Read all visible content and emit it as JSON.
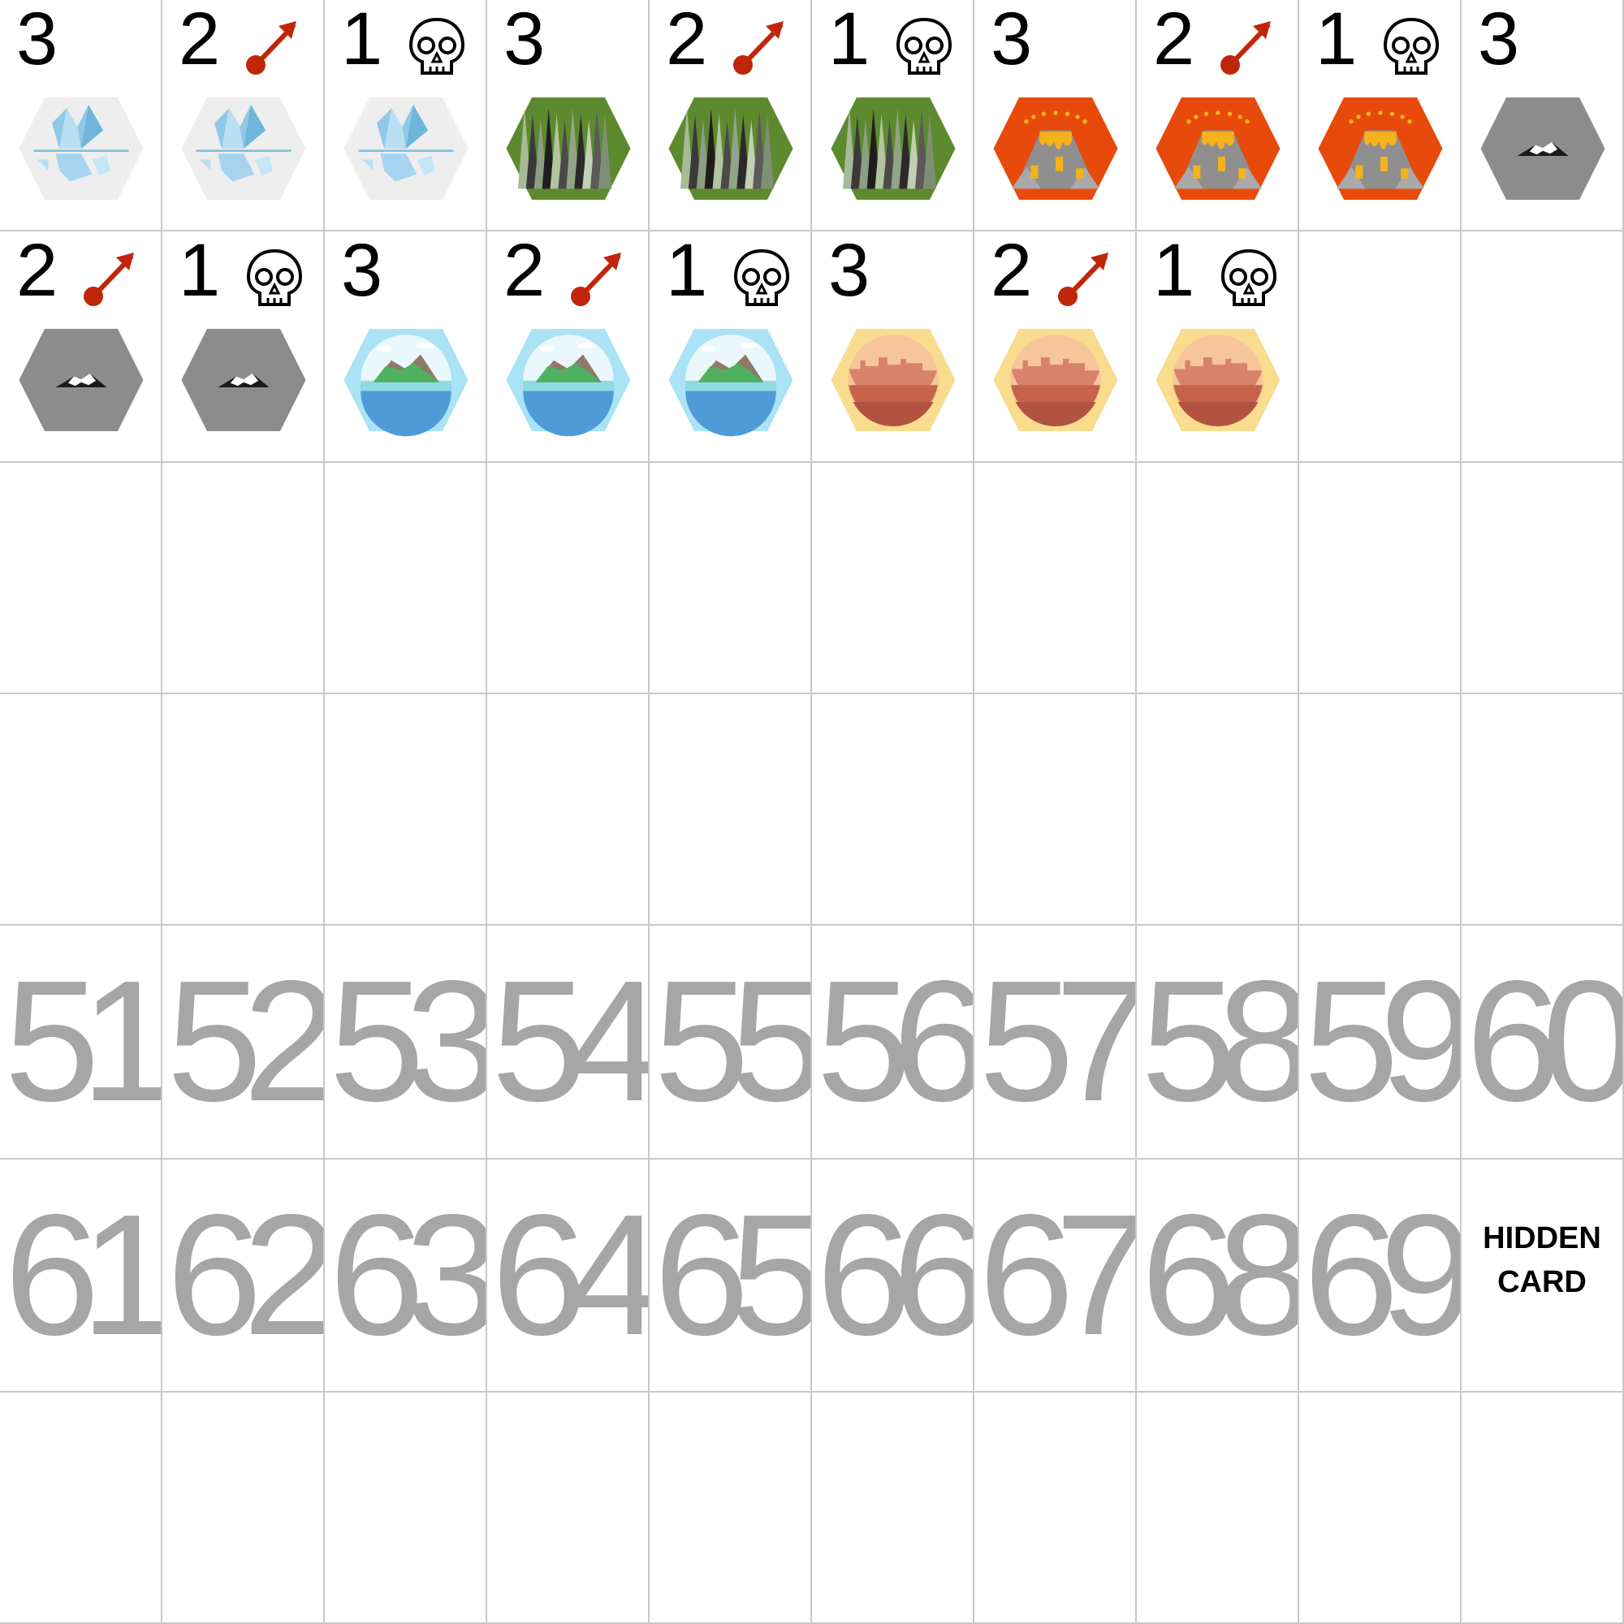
{
  "tile_row_1": [
    {
      "value": "3",
      "effect": "none",
      "terrain": "ice"
    },
    {
      "value": "2",
      "effect": "arrow",
      "terrain": "ice"
    },
    {
      "value": "1",
      "effect": "skull",
      "terrain": "ice"
    },
    {
      "value": "3",
      "effect": "none",
      "terrain": "forest"
    },
    {
      "value": "2",
      "effect": "arrow",
      "terrain": "forest"
    },
    {
      "value": "1",
      "effect": "skull",
      "terrain": "forest"
    },
    {
      "value": "3",
      "effect": "none",
      "terrain": "volcano"
    },
    {
      "value": "2",
      "effect": "arrow",
      "terrain": "volcano"
    },
    {
      "value": "1",
      "effect": "skull",
      "terrain": "volcano"
    },
    {
      "value": "3",
      "effect": "none",
      "terrain": "mountain"
    }
  ],
  "tile_row_2": [
    {
      "value": "2",
      "effect": "arrow",
      "terrain": "mountain"
    },
    {
      "value": "1",
      "effect": "skull",
      "terrain": "mountain"
    },
    {
      "value": "3",
      "effect": "none",
      "terrain": "island"
    },
    {
      "value": "2",
      "effect": "arrow",
      "terrain": "island"
    },
    {
      "value": "1",
      "effect": "skull",
      "terrain": "island"
    },
    {
      "value": "3",
      "effect": "none",
      "terrain": "desert"
    },
    {
      "value": "2",
      "effect": "arrow",
      "terrain": "desert"
    },
    {
      "value": "1",
      "effect": "skull",
      "terrain": "desert"
    }
  ],
  "number_row_1": [
    "51",
    "52",
    "53",
    "54",
    "55",
    "56",
    "57",
    "58",
    "59",
    "60"
  ],
  "number_row_2": [
    "61",
    "62",
    "63",
    "64",
    "65",
    "66",
    "67",
    "68",
    "69"
  ],
  "hidden_card": {
    "line1": "HIDDEN",
    "line2": "CARD"
  },
  "colors": {
    "ice": "#eeeeee",
    "forest": "#5e8a2f",
    "volcano": "#e84a0c",
    "mountain": "#8c8c8c",
    "island": "#a9e3f5",
    "desert": "#f9dc8e",
    "arrow": "#c0260a",
    "number": "#a6a6a6",
    "grid": "#c8c8c8"
  }
}
